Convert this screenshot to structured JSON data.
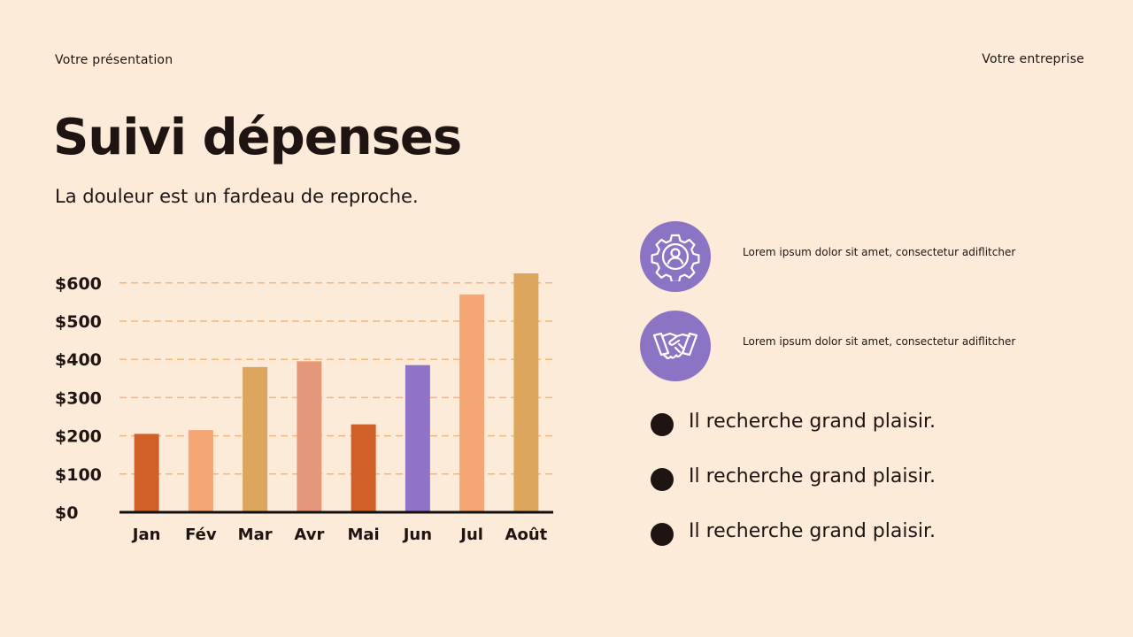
{
  "header": {
    "left": "Votre présentation",
    "right": "Votre entreprise"
  },
  "title": "Suivi dépenses",
  "subtitle": "La douleur est un fardeau de reproche.",
  "features": [
    {
      "icon": "gear-user-icon",
      "text": "Lorem ipsum dolor sit amet, consectetur adiflitcher"
    },
    {
      "icon": "handshake-icon",
      "text": "Lorem ipsum dolor sit amet, consectetur adiflitcher"
    }
  ],
  "bullets": [
    "Il recherche grand plaisir.",
    "Il recherche grand plaisir.",
    "Il recherche grand plaisir."
  ],
  "colors": {
    "background": "#FDEBDA",
    "accent_purple": "#8B74C4",
    "grid": "#F2B77C",
    "text": "#1E1512"
  },
  "chart_data": {
    "type": "bar",
    "categories": [
      "Jan",
      "Fév",
      "Mar",
      "Avr",
      "Mai",
      "Jun",
      "Jul",
      "Août"
    ],
    "values": [
      205,
      215,
      380,
      395,
      230,
      385,
      570,
      625
    ],
    "colors": [
      "#D06028",
      "#F4A675",
      "#DDA65E",
      "#E59879",
      "#D06028",
      "#8E73C6",
      "#F4A675",
      "#DDA65E"
    ],
    "yticks": [
      0,
      100,
      200,
      300,
      400,
      500,
      600
    ],
    "ytick_labels": [
      "$0",
      "$100",
      "$200",
      "$300",
      "$400",
      "$500",
      "$600"
    ],
    "ylim": [
      0,
      625
    ],
    "grid": true,
    "title": "",
    "xlabel": "",
    "ylabel": ""
  }
}
